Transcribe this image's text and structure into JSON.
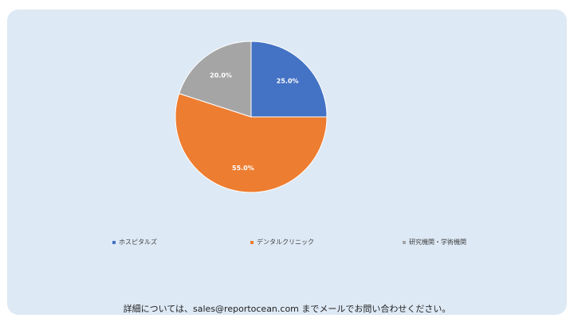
{
  "chart_data": {
    "type": "pie",
    "title": "",
    "slices": [
      {
        "label": "ホスピタルズ",
        "value": 25.0,
        "value_label": "25.0%",
        "color": "#4472c4"
      },
      {
        "label": "デンタルクリニック",
        "value": 55.0,
        "value_label": "55.0%",
        "color": "#ed7d31"
      },
      {
        "label": "研究機関・学術機関",
        "value": 20.0,
        "value_label": "20.0%",
        "color": "#a5a5a5"
      }
    ],
    "legend_position": "bottom"
  },
  "footer": {
    "text": "詳細については、sales@reportocean.com までメールでお問い合わせください。"
  }
}
